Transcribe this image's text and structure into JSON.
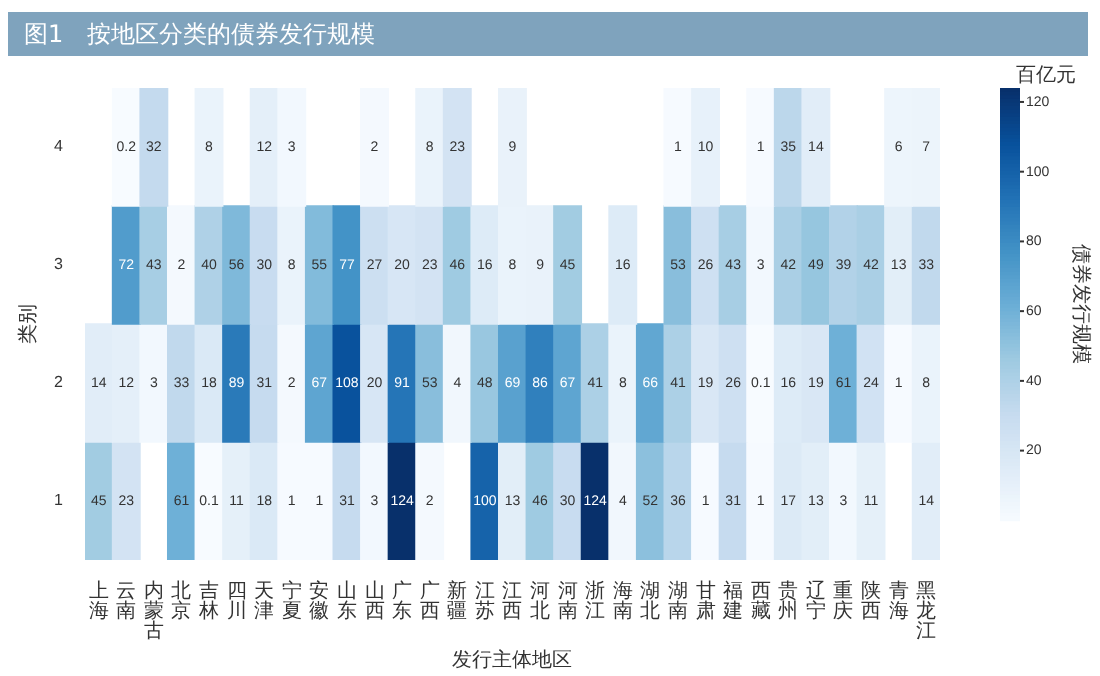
{
  "chart_data": {
    "type": "heatmap",
    "title": "图1　按地区分类的债券发行规模",
    "xlabel": "发行主体地区",
    "ylabel": "类别",
    "clabel": "债券发行规模",
    "annotations": [
      "百亿元"
    ],
    "categories": [
      "上海",
      "云南",
      "内蒙古",
      "北京",
      "吉林",
      "四川",
      "天津",
      "宁夏",
      "安徽",
      "山东",
      "山西",
      "广东",
      "广西",
      "新疆",
      "江苏",
      "江西",
      "河北",
      "河南",
      "浙江",
      "海南",
      "湖北",
      "湖南",
      "甘肃",
      "福建",
      "西藏",
      "贵州",
      "辽宁",
      "重庆",
      "陕西",
      "青海",
      "黑龙江"
    ],
    "y_categories": [
      "4",
      "3",
      "2",
      "1"
    ],
    "cells": [
      [
        null,
        0.2,
        32,
        null,
        8,
        null,
        12,
        3,
        null,
        null,
        2,
        null,
        8,
        23,
        null,
        9,
        null,
        null,
        null,
        null,
        null,
        1,
        10,
        null,
        1,
        35,
        14,
        null,
        null,
        6,
        7
      ],
      [
        null,
        72,
        43,
        2,
        40,
        56,
        30,
        8,
        55,
        77,
        27,
        20,
        23,
        46,
        16,
        8,
        9,
        45,
        null,
        16,
        null,
        53,
        26,
        43,
        3,
        42,
        49,
        39,
        42,
        13,
        33
      ],
      [
        14,
        12,
        3,
        33,
        18,
        89,
        31,
        2,
        67,
        108,
        20,
        91,
        53,
        4,
        48,
        69,
        86,
        67,
        41,
        8,
        66,
        41,
        19,
        26,
        0.1,
        16,
        19,
        61,
        24,
        1,
        8
      ],
      [
        45,
        23,
        null,
        61,
        0.1,
        11,
        18,
        1,
        1,
        31,
        3,
        124,
        2,
        null,
        100,
        13,
        46,
        30,
        124,
        4,
        52,
        36,
        1,
        31,
        1,
        17,
        13,
        3,
        11,
        null,
        14
      ]
    ],
    "data_labels": true,
    "clim": [
      0.1,
      124
    ],
    "cticks": [
      20,
      40,
      60,
      80,
      100,
      120
    ]
  }
}
